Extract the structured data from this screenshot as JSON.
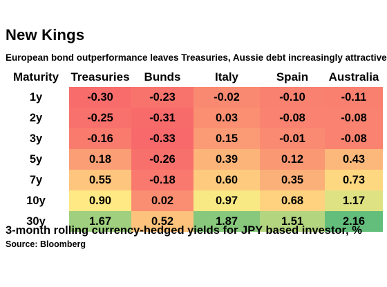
{
  "title": "New Kings",
  "subtitle": "European bond outperformance leaves Treasuries, Aussie debt increasingly attractive",
  "footnote": "3-month rolling currency-hedged yields for JPY based investor, %",
  "source": "Source: Bloomberg",
  "colors": {
    "low": "#f8696b",
    "mid": "#ffeb84",
    "high": "#63be7b"
  },
  "chart_data": {
    "type": "heatmap",
    "row_header": "Maturity",
    "columns": [
      "Treasuries",
      "Bunds",
      "Italy",
      "Spain",
      "Australia"
    ],
    "rows": [
      "1y",
      "2y",
      "3y",
      "5y",
      "7y",
      "10y",
      "30y"
    ],
    "values": [
      [
        "-0.30",
        "-0.23",
        "-0.02",
        "-0.10",
        "-0.11"
      ],
      [
        "-0.25",
        "-0.31",
        "0.03",
        "-0.08",
        "-0.08"
      ],
      [
        "-0.16",
        "-0.33",
        "0.15",
        "-0.01",
        "-0.08"
      ],
      [
        "0.18",
        "-0.26",
        "0.39",
        "0.12",
        "0.43"
      ],
      [
        "0.55",
        "-0.18",
        "0.60",
        "0.35",
        "0.73"
      ],
      [
        "0.90",
        "0.02",
        "0.97",
        "0.68",
        "1.17"
      ],
      [
        "1.67",
        "0.52",
        "1.87",
        "1.51",
        "2.16"
      ]
    ]
  }
}
